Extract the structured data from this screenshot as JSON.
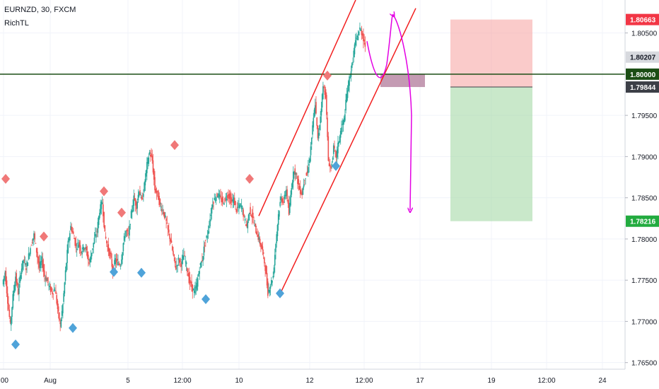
{
  "header": {
    "symbol_line": "EURNZD, 30, FXCM",
    "author": "RichTL"
  },
  "chart_data": {
    "type": "candlestick",
    "x_ticks": [
      ":00",
      "Aug",
      "5",
      "12:00",
      "10",
      "12",
      "12:00",
      "17",
      "19",
      "12:00",
      "24"
    ],
    "y_ticks": [
      "1.80500",
      "1.80000",
      "1.79500",
      "1.79000",
      "1.78500",
      "1.78000",
      "1.77500",
      "1.77000",
      "1.76500"
    ],
    "ylim": [
      1.7642,
      1.809
    ],
    "price_tags": [
      {
        "label": "1.80663",
        "value": 1.80663,
        "color": "#f23645"
      },
      {
        "label": "1.80207",
        "value": 1.80207,
        "color": "#d7d9de"
      },
      {
        "label": "1.80000",
        "value": 1.8,
        "color": "#1b4d14"
      },
      {
        "label": "1.79844",
        "value": 1.79844,
        "color": "#3c3f47"
      },
      {
        "label": "1.78216",
        "value": 1.78216,
        "color": "#22ab3f"
      }
    ],
    "horizontal_level": 1.8,
    "trade_box": {
      "stop": 1.80663,
      "entry": 1.79844,
      "target": 1.78216
    },
    "resistance_zone": {
      "top": 1.8,
      "bottom": 1.79844
    },
    "candles_series": "EURNZD 30m close path (approximate)",
    "close_path": [
      1.7745,
      1.776,
      1.7725,
      1.7695,
      1.773,
      1.7755,
      1.7735,
      1.776,
      1.7775,
      1.7765,
      1.778,
      1.7795,
      1.7805,
      1.7785,
      1.7765,
      1.7775,
      1.7755,
      1.775,
      1.774,
      1.7735,
      1.774,
      1.7715,
      1.7695,
      1.772,
      1.776,
      1.7795,
      1.7815,
      1.7805,
      1.779,
      1.7795,
      1.7785,
      1.7792,
      1.7785,
      1.777,
      1.7785,
      1.78,
      1.781,
      1.7835,
      1.7845,
      1.7805,
      1.779,
      1.778,
      1.7762,
      1.7775,
      1.777,
      1.777,
      1.7795,
      1.781,
      1.7805,
      1.783,
      1.785,
      1.784,
      1.786,
      1.7845,
      1.7865,
      1.789,
      1.7905,
      1.7895,
      1.786,
      1.7855,
      1.784,
      1.7835,
      1.7825,
      1.781,
      1.7798,
      1.778,
      1.7765,
      1.7775,
      1.777,
      1.778,
      1.7768,
      1.775,
      1.7742,
      1.7735,
      1.7745,
      1.7765,
      1.7775,
      1.7795,
      1.7805,
      1.7825,
      1.7845,
      1.785,
      1.7855,
      1.7848,
      1.7845,
      1.785,
      1.7855,
      1.7845,
      1.7848,
      1.7835,
      1.784,
      1.784,
      1.7825,
      1.7815,
      1.7835,
      1.7828,
      1.7815,
      1.7805,
      1.7795,
      1.7785,
      1.7765,
      1.7735,
      1.7745,
      1.7755,
      1.7795,
      1.783,
      1.785,
      1.7845,
      1.786,
      1.783,
      1.7865,
      1.7885,
      1.7875,
      1.786,
      1.7855,
      1.7875,
      1.788,
      1.79,
      1.7935,
      1.7965,
      1.792,
      1.795,
      1.7985,
      1.7975,
      1.7895,
      1.7885,
      1.791,
      1.79,
      1.792,
      1.7935,
      1.7945,
      1.7975,
      1.7995,
      1.801,
      1.8035,
      1.8045,
      1.8055,
      1.8048,
      1.8035
    ],
    "highs_markers": [
      1.7873,
      1.7803,
      1.7858,
      1.7832,
      1.7914,
      1.7873,
      1.79983
    ],
    "lows_markers": [
      1.7672,
      1.7692,
      1.776,
      1.7759,
      1.7727,
      1.7734,
      1.78885
    ],
    "trend_channel": {
      "upper": [
        [
          1.7828,
          1.809
        ]
      ],
      "lower": [
        [
          1.7733,
          1.808
        ]
      ]
    },
    "projection": {
      "high": 1.8065,
      "low": 1.7833
    }
  }
}
